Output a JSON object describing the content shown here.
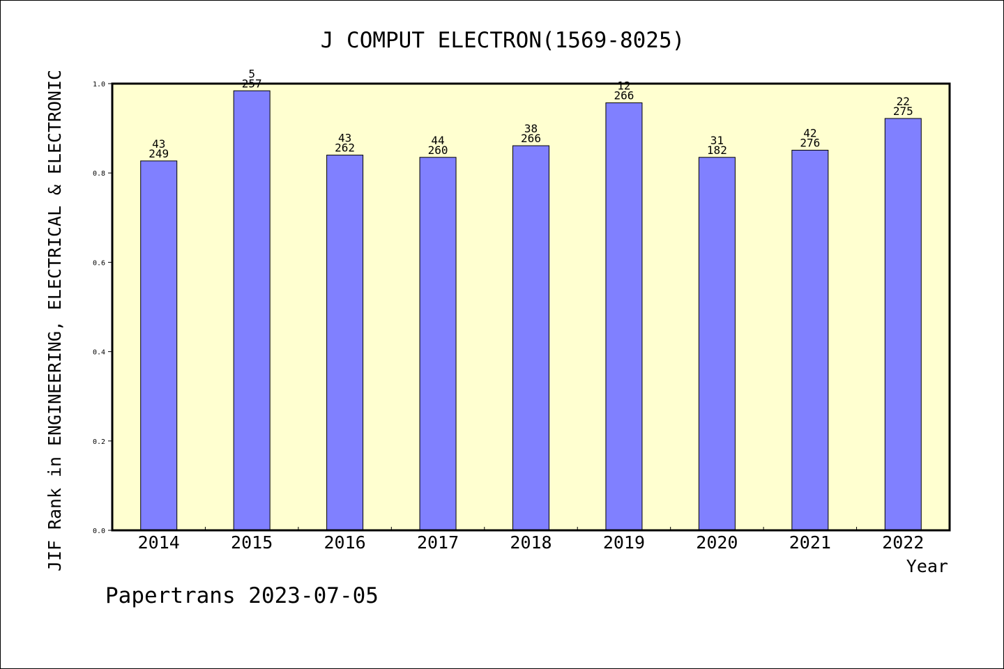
{
  "colors": {
    "plot_background": "#ffffd0",
    "bar_fill": "#8080ff",
    "bar_stroke": "#000000",
    "axis": "#000000",
    "text": "#000000"
  },
  "footer": {
    "source_label": "Papertrans 2023-07-05"
  },
  "chart_data": {
    "type": "bar",
    "title": "J COMPUT ELECTRON(1569-8025)",
    "xlabel": "Year",
    "ylabel": "JIF Rank in ENGINEERING, ELECTRICAL & ELECTRONIC",
    "ylim": [
      0,
      1
    ],
    "yticks": [
      "0.0",
      "0.2",
      "0.4",
      "0.6",
      "0.8",
      "1.0"
    ],
    "grid": false,
    "legend": "none",
    "categories": [
      "2014",
      "2015",
      "2016",
      "2017",
      "2018",
      "2019",
      "2020",
      "2021",
      "2022"
    ],
    "values": [
      0.827,
      0.984,
      0.84,
      0.835,
      0.861,
      0.957,
      0.835,
      0.851,
      0.922
    ],
    "rank": [
      "43",
      "5",
      "43",
      "44",
      "38",
      "12",
      "31",
      "42",
      "22"
    ],
    "total": [
      "249",
      "257",
      "262",
      "260",
      "266",
      "266",
      "182",
      "276",
      "275"
    ]
  }
}
